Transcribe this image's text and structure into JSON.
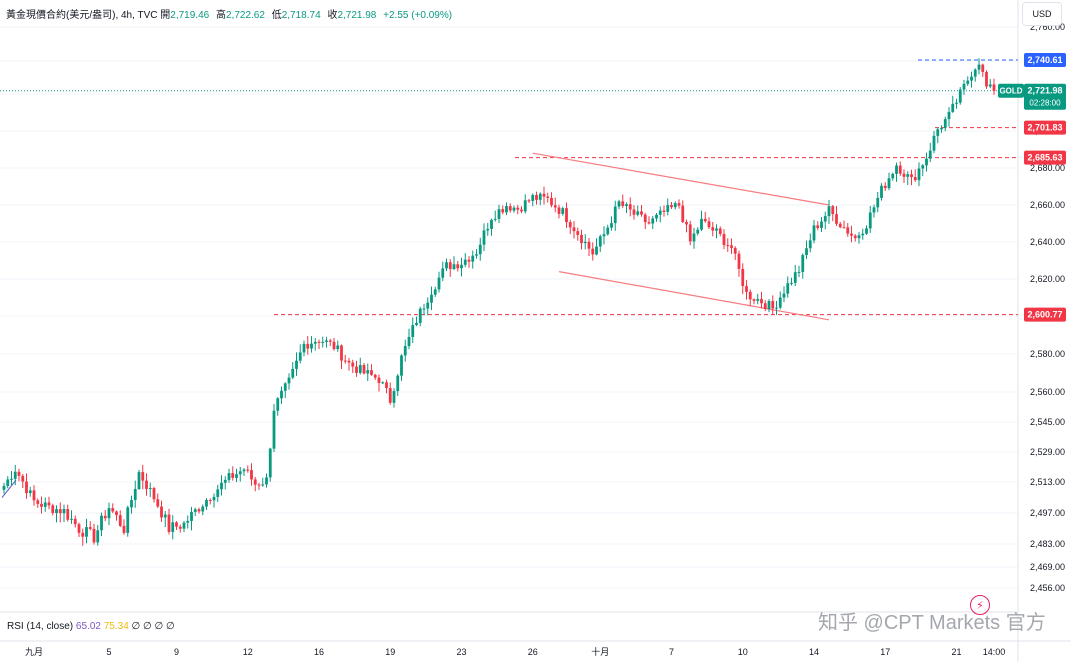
{
  "legend": {
    "symbol": "黃金現價合約(美元/盎司), 4h, TVC",
    "open_label": "開",
    "open": "2,719.46",
    "high_label": "高",
    "high": "2,722.62",
    "low_label": "低",
    "low": "2,718.74",
    "close_label": "收",
    "close": "2,721.98",
    "change": "+2.55 (+0.09%)"
  },
  "currency_button": "USD",
  "rsi": {
    "label": "RSI (14, close)",
    "value1": "65.02",
    "value2": "75.34",
    "zeros": "∅ ∅ ∅ ∅"
  },
  "watermark": "知乎 @CPT Markets 官方",
  "colors": {
    "up": "#089981",
    "down": "#f23645",
    "line": "#f77c80",
    "blue": "#2962ff"
  },
  "price_labels": [
    {
      "text": "2,740.61",
      "price": 2740.61,
      "color": "#2962ff"
    },
    {
      "text": "2,701.83",
      "price": 2701.83,
      "color": "#f23645"
    },
    {
      "text": "2,685.63",
      "price": 2685.63,
      "color": "#f23645"
    },
    {
      "text": "2,600.77",
      "price": 2600.77,
      "color": "#f23645"
    }
  ],
  "current_price": {
    "tag": "GOLD",
    "price_text": "2,721.98",
    "countdown": "02:28:00",
    "price": 2721.98
  },
  "chart_data": {
    "type": "candlestick",
    "title": "黃金現價合約(美元/盎司), 4h, TVC",
    "y_ticks": [
      {
        "label": "2,456.00",
        "value": 2456
      },
      {
        "label": "2,469.00",
        "value": 2469
      },
      {
        "label": "2,483.00",
        "value": 2483
      },
      {
        "label": "2,497.00",
        "value": 2497
      },
      {
        "label": "2,513.00",
        "value": 2513
      },
      {
        "label": "2,529.00",
        "value": 2529
      },
      {
        "label": "2,545.00",
        "value": 2545
      },
      {
        "label": "2,560.00",
        "value": 2560
      },
      {
        "label": "2,580.00",
        "value": 2580
      },
      {
        "label": "2,600.00",
        "value": 2600
      },
      {
        "label": "2,620.00",
        "value": 2620
      },
      {
        "label": "2,640.00",
        "value": 2640
      },
      {
        "label": "2,660.00",
        "value": 2660
      },
      {
        "label": "2,680.00",
        "value": 2680
      },
      {
        "label": "2,700.00",
        "value": 2700
      },
      {
        "label": "2,720.00",
        "value": 2720
      },
      {
        "label": "2,740.00",
        "value": 2740
      },
      {
        "label": "2,760.00",
        "value": 2760
      }
    ],
    "x_ticks": [
      "九月",
      "5",
      "9",
      "12",
      "16",
      "19",
      "23",
      "26",
      "十月",
      "7",
      "10",
      "14",
      "17",
      "21",
      "14:00"
    ],
    "x_tick_bars": [
      8,
      28,
      46,
      65,
      84,
      103,
      122,
      141,
      159,
      178,
      197,
      216,
      235,
      254,
      264
    ],
    "horizontal_levels": [
      2740.61,
      2701.83,
      2685.63,
      2600.77
    ],
    "channel_upper": {
      "start": [
        141,
        2688
      ],
      "end": [
        220,
        2660
      ]
    },
    "channel_lower": {
      "start": [
        148,
        2624
      ],
      "end": [
        220,
        2598
      ]
    },
    "close_keypoints": [
      [
        0,
        2511
      ],
      [
        3,
        2520
      ],
      [
        8,
        2503
      ],
      [
        12,
        2500
      ],
      [
        16,
        2498
      ],
      [
        20,
        2490
      ],
      [
        24,
        2486
      ],
      [
        28,
        2500
      ],
      [
        32,
        2490
      ],
      [
        36,
        2518
      ],
      [
        40,
        2505
      ],
      [
        44,
        2490
      ],
      [
        48,
        2492
      ],
      [
        52,
        2500
      ],
      [
        56,
        2508
      ],
      [
        60,
        2515
      ],
      [
        64,
        2520
      ],
      [
        67,
        2512
      ],
      [
        70,
        2514
      ],
      [
        72,
        2552
      ],
      [
        76,
        2565
      ],
      [
        80,
        2585
      ],
      [
        84,
        2588
      ],
      [
        88,
        2584
      ],
      [
        92,
        2575
      ],
      [
        96,
        2570
      ],
      [
        100,
        2567
      ],
      [
        103,
        2556
      ],
      [
        106,
        2578
      ],
      [
        110,
        2598
      ],
      [
        114,
        2614
      ],
      [
        118,
        2627
      ],
      [
        122,
        2629
      ],
      [
        126,
        2635
      ],
      [
        130,
        2654
      ],
      [
        134,
        2660
      ],
      [
        137,
        2658
      ],
      [
        141,
        2664
      ],
      [
        145,
        2663
      ],
      [
        149,
        2656
      ],
      [
        153,
        2645
      ],
      [
        157,
        2634
      ],
      [
        160,
        2644
      ],
      [
        164,
        2661
      ],
      [
        168,
        2655
      ],
      [
        172,
        2650
      ],
      [
        176,
        2656
      ],
      [
        180,
        2660
      ],
      [
        183,
        2640
      ],
      [
        186,
        2651
      ],
      [
        190,
        2645
      ],
      [
        194,
        2637
      ],
      [
        198,
        2612
      ],
      [
        202,
        2608
      ],
      [
        205,
        2604
      ],
      [
        208,
        2614
      ],
      [
        212,
        2625
      ],
      [
        216,
        2647
      ],
      [
        220,
        2657
      ],
      [
        223,
        2650
      ],
      [
        227,
        2642
      ],
      [
        230,
        2650
      ],
      [
        234,
        2668
      ],
      [
        238,
        2682
      ],
      [
        242,
        2673
      ],
      [
        246,
        2686
      ],
      [
        249,
        2701
      ],
      [
        252,
        2708
      ],
      [
        255,
        2720
      ],
      [
        258,
        2733
      ],
      [
        260,
        2740
      ],
      [
        262,
        2724
      ],
      [
        264,
        2722
      ]
    ]
  }
}
